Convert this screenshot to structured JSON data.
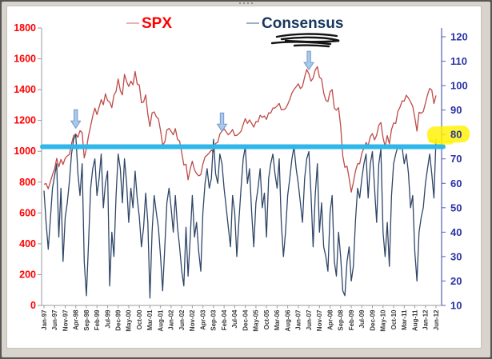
{
  "window": {
    "frame_color": "#d8d4cc",
    "border_color": "#565656"
  },
  "legend": {
    "spx_label": "SPX",
    "consensus_label": "Consensus",
    "spx_text_color": "#FF0000",
    "consensus_text_color": "#17375E",
    "spx_marker_color": "#E09E9C",
    "consensus_marker_color": "#7F9CBE"
  },
  "chart_data": {
    "type": "line",
    "title": "",
    "x_start": "Jan-97",
    "x_end": "Jun-12",
    "x_months_per_tick": 5,
    "x_tick_labels": [
      "Jan-97",
      "Jun-97",
      "Nov-97",
      "Apr-98",
      "Sep-98",
      "Feb-99",
      "Jul-99",
      "Dec-99",
      "May-00",
      "Oct-00",
      "Mar-01",
      "Aug-01",
      "Jan-02",
      "Jun-02",
      "Nov-02",
      "Apr-03",
      "Sep-03",
      "Feb-04",
      "Jul-04",
      "Dec-04",
      "May-05",
      "Oct-05",
      "Mar-06",
      "Aug-06",
      "Jan-07",
      "Jun-07",
      "Nov-07",
      "Apr-08",
      "Sep-08",
      "Feb-09",
      "Jul-09",
      "Dec-09",
      "May-10",
      "Oct-10",
      "Mar-11",
      "Aug-11",
      "Jan-12",
      "Jun-12"
    ],
    "left_axis": {
      "min": 0,
      "max": 1800,
      "tick_step": 200,
      "tick_labels": [
        "0",
        "200",
        "400",
        "600",
        "800",
        "1000",
        "1200",
        "1400",
        "1600",
        "1800"
      ],
      "label_color": "#FF0000",
      "line_color": "#9b9b9b"
    },
    "right_axis": {
      "min": 10,
      "max": 120,
      "tick_step": 10,
      "tick_labels": [
        "10",
        "20",
        "30",
        "40",
        "50",
        "60",
        "70",
        "80",
        "90",
        "100",
        "110",
        "120"
      ],
      "label_color": "#2B32A5",
      "line_color": "#5560b4"
    },
    "x_axis_label_color": "#3a3a3a",
    "grid": "off",
    "legend_position": "top",
    "series": [
      {
        "name": "SPX",
        "axis": "left",
        "color": "#BE4B48",
        "values": [
          786,
          791,
          757,
          801,
          848,
          885,
          954,
          899,
          947,
          915,
          955,
          970,
          980,
          1049,
          1102,
          1112,
          1091,
          1134,
          1121,
          957,
          1017,
          1099,
          1164,
          1229,
          1280,
          1238,
          1286,
          1335,
          1302,
          1373,
          1329,
          1320,
          1283,
          1363,
          1389,
          1469,
          1394,
          1366,
          1499,
          1452,
          1421,
          1455,
          1431,
          1518,
          1437,
          1429,
          1315,
          1320,
          1366,
          1240,
          1160,
          1249,
          1256,
          1224,
          1211,
          1134,
          1041,
          1060,
          1139,
          1148,
          1130,
          1107,
          1147,
          1077,
          1067,
          990,
          911,
          916,
          815,
          886,
          936,
          880,
          856,
          841,
          848,
          917,
          964,
          975,
          990,
          1008,
          996,
          1051,
          1058,
          1112,
          1131,
          1145,
          1126,
          1107,
          1121,
          1141,
          1102,
          1104,
          1115,
          1130,
          1174,
          1212,
          1181,
          1204,
          1181,
          1157,
          1192,
          1191,
          1234,
          1220,
          1229,
          1207,
          1249,
          1248,
          1280,
          1281,
          1295,
          1311,
          1270,
          1270,
          1277,
          1304,
          1336,
          1378,
          1401,
          1418,
          1438,
          1407,
          1421,
          1482,
          1531,
          1503,
          1455,
          1474,
          1527,
          1549,
          1481,
          1468,
          1379,
          1331,
          1323,
          1386,
          1400,
          1280,
          1267,
          1283,
          1166,
          969,
          896,
          903,
          826,
          735,
          798,
          873,
          919,
          919,
          987,
          1021,
          1057,
          1036,
          1096,
          1115,
          1074,
          1104,
          1169,
          1187,
          1089,
          1031,
          1102,
          1049,
          1141,
          1183,
          1181,
          1258,
          1286,
          1327,
          1326,
          1364,
          1345,
          1321,
          1292,
          1219,
          1131,
          1253,
          1247,
          1258,
          1312,
          1366,
          1408,
          1398,
          1310,
          1362
        ]
      },
      {
        "name": "Consensus",
        "axis": "right",
        "color": "#2F4668",
        "values": [
          57,
          44,
          33,
          45,
          58,
          63,
          68,
          38,
          58,
          28,
          46,
          52,
          61,
          72,
          78,
          80,
          64,
          55,
          68,
          28,
          14,
          35,
          58,
          66,
          70,
          55,
          62,
          72,
          50,
          60,
          65,
          18,
          40,
          30,
          55,
          72,
          66,
          52,
          70,
          60,
          44,
          58,
          50,
          65,
          54,
          46,
          34,
          42,
          56,
          44,
          13,
          40,
          55,
          48,
          42,
          30,
          16,
          34,
          52,
          58,
          50,
          40,
          55,
          42,
          34,
          24,
          18,
          42,
          22,
          38,
          55,
          38,
          44,
          32,
          24,
          48,
          60,
          66,
          58,
          62,
          78,
          64,
          60,
          72,
          68,
          58,
          50,
          42,
          34,
          55,
          48,
          30,
          45,
          58,
          70,
          75,
          60,
          66,
          48,
          34,
          52,
          58,
          66,
          50,
          56,
          38,
          62,
          68,
          72,
          64,
          58,
          70,
          44,
          30,
          40,
          55,
          62,
          70,
          75,
          66,
          60,
          52,
          44,
          62,
          70,
          73,
          56,
          34,
          55,
          68,
          40,
          52,
          34,
          30,
          24,
          48,
          55,
          28,
          22,
          40,
          30,
          16,
          14,
          28,
          34,
          20,
          26,
          45,
          58,
          54,
          62,
          68,
          72,
          54,
          68,
          73,
          58,
          44,
          68,
          74,
          40,
          30,
          44,
          26,
          55,
          68,
          72,
          75,
          74,
          75,
          68,
          72,
          64,
          50,
          55,
          32,
          20,
          40,
          46,
          50,
          60,
          66,
          72,
          64,
          54,
          78
        ]
      }
    ],
    "annotations": {
      "threshold_line": {
        "axis": "right",
        "value": 75,
        "color": "#2FB7EA",
        "thickness": 6
      },
      "arrows": [
        {
          "month_index": 15,
          "tip_value_left": 1150,
          "fill": "#A7C5E8",
          "stroke": "#6B96CC"
        },
        {
          "month_index": 84,
          "tip_value_left": 1130,
          "fill": "#A7C5E8",
          "stroke": "#6B96CC"
        },
        {
          "month_index": 125,
          "tip_value_left": 1530,
          "fill": "#A7C5E8",
          "stroke": "#6B96CC"
        }
      ],
      "highlight_right_axis_label": {
        "value": 80,
        "color": "#FFF200"
      },
      "scribble": {
        "location": "under Consensus legend",
        "color": "#141414"
      }
    }
  }
}
